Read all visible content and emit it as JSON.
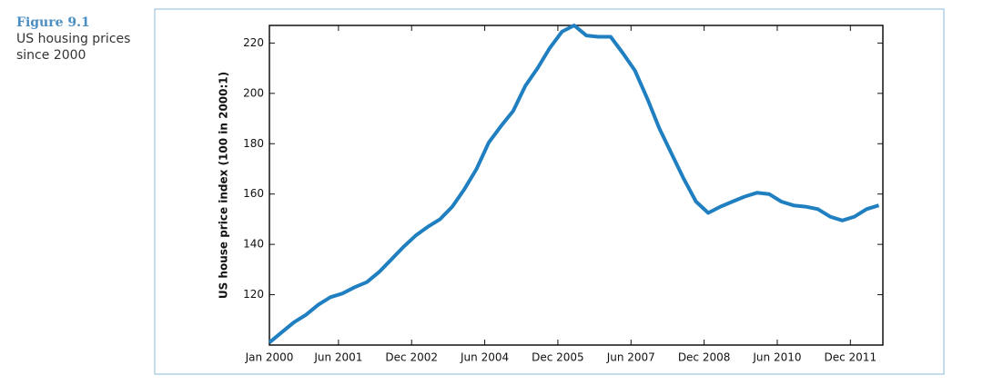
{
  "chart_data": {
    "type": "line",
    "figure_label": "Figure 9.1",
    "title": "US housing prices since 2000",
    "y_label": "US house price index (100 in 2000:1)",
    "x": [
      "2000-01",
      "2000-04",
      "2000-07",
      "2000-10",
      "2001-01",
      "2001-04",
      "2001-07",
      "2001-10",
      "2002-01",
      "2002-04",
      "2002-07",
      "2002-10",
      "2003-01",
      "2003-04",
      "2003-07",
      "2003-10",
      "2004-01",
      "2004-04",
      "2004-07",
      "2004-10",
      "2005-01",
      "2005-04",
      "2005-07",
      "2005-10",
      "2006-01",
      "2006-04",
      "2006-07",
      "2006-10",
      "2007-01",
      "2007-04",
      "2007-07",
      "2007-10",
      "2008-01",
      "2008-04",
      "2008-07",
      "2008-10",
      "2009-01",
      "2009-04",
      "2009-07",
      "2009-10",
      "2010-01",
      "2010-04",
      "2010-07",
      "2010-10",
      "2011-01",
      "2011-04",
      "2011-07",
      "2011-10",
      "2012-01",
      "2012-04",
      "2012-07"
    ],
    "series": [
      {
        "name": "US house price index",
        "color": "#1f7fc0",
        "values": [
          101,
          105,
          109,
          112,
          116,
          119,
          120.5,
          123,
          125,
          129,
          134,
          139,
          143.5,
          147,
          150,
          155,
          162,
          170,
          180.5,
          187,
          193,
          203,
          210,
          218,
          224.5,
          227,
          223,
          222.5,
          222.5,
          216,
          209,
          198,
          186,
          176,
          166,
          157,
          152.5,
          155,
          157,
          159,
          160.5,
          160,
          157,
          155.5,
          155,
          154,
          151,
          149.5,
          151,
          154,
          155.5
        ]
      }
    ],
    "xlim": [
      "2000-01",
      "2012-08"
    ],
    "xticks": [
      {
        "value": "2000-01",
        "label": "Jan 2000"
      },
      {
        "value": "2001-06",
        "label": "Jun 2001"
      },
      {
        "value": "2002-12",
        "label": "Dec 2002"
      },
      {
        "value": "2004-06",
        "label": "Jun 2004"
      },
      {
        "value": "2005-12",
        "label": "Dec 2005"
      },
      {
        "value": "2007-06",
        "label": "Jun 2007"
      },
      {
        "value": "2008-12",
        "label": "Dec 2008"
      },
      {
        "value": "2010-06",
        "label": "Jun 2010"
      },
      {
        "value": "2011-12",
        "label": "Dec 2011"
      }
    ],
    "ylim": [
      100,
      227
    ],
    "yticks": [
      120,
      140,
      160,
      180,
      200,
      220
    ]
  }
}
